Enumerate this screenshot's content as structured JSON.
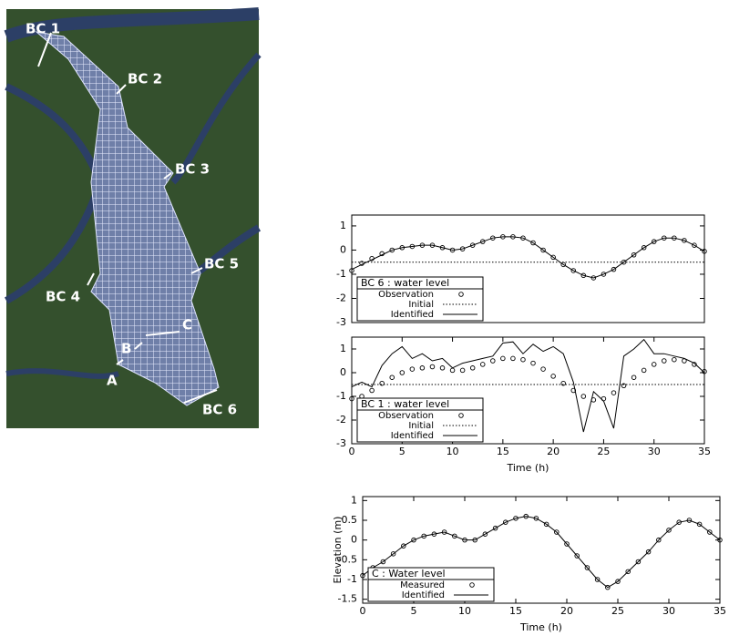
{
  "map": {
    "labels": [
      "BC 1",
      "BC 2",
      "BC 3",
      "BC 4",
      "BC 5",
      "C",
      "B",
      "A",
      "BC 6"
    ]
  },
  "chart_data": [
    {
      "type": "line",
      "title": "BC 6 : water level",
      "legend": "lower left",
      "x": [
        0,
        1,
        2,
        3,
        4,
        5,
        6,
        7,
        8,
        9,
        10,
        11,
        12,
        13,
        14,
        15,
        16,
        17,
        18,
        19,
        20,
        21,
        22,
        23,
        24,
        25,
        26,
        27,
        28,
        29,
        30,
        31,
        32,
        33,
        34,
        35
      ],
      "xlim": [
        0,
        35
      ],
      "ylim": [
        -3,
        1.45
      ],
      "yticks": [
        -3,
        -2,
        -1,
        0,
        1
      ],
      "series": [
        {
          "name": "Observation",
          "color": "#000000",
          "marker": "circle",
          "values": [
            -0.85,
            -0.55,
            -0.35,
            -0.15,
            0.0,
            0.1,
            0.15,
            0.2,
            0.2,
            0.1,
            0.0,
            0.05,
            0.2,
            0.35,
            0.5,
            0.55,
            0.55,
            0.5,
            0.3,
            0.0,
            -0.3,
            -0.6,
            -0.85,
            -1.05,
            -1.15,
            -1.0,
            -0.8,
            -0.5,
            -0.2,
            0.1,
            0.35,
            0.5,
            0.5,
            0.4,
            0.2,
            -0.05
          ]
        },
        {
          "name": "Initial",
          "color": "#000000",
          "dash": "dotted",
          "values": [
            -0.5,
            -0.5,
            -0.5,
            -0.5,
            -0.5,
            -0.5,
            -0.5,
            -0.5,
            -0.5,
            -0.5,
            -0.5,
            -0.5,
            -0.5,
            -0.5,
            -0.5,
            -0.5,
            -0.5,
            -0.5,
            -0.5,
            -0.5,
            -0.5,
            -0.5,
            -0.5,
            -0.5,
            -0.5,
            -0.5,
            -0.5,
            -0.5,
            -0.5,
            -0.5,
            -0.5,
            -0.5,
            -0.5,
            -0.5,
            -0.5,
            -0.5
          ]
        },
        {
          "name": "Identified",
          "color": "#000000",
          "dash": "solid",
          "values": [
            -0.8,
            -0.6,
            -0.4,
            -0.2,
            0.0,
            0.1,
            0.15,
            0.2,
            0.2,
            0.1,
            0.0,
            0.05,
            0.2,
            0.35,
            0.5,
            0.55,
            0.55,
            0.5,
            0.3,
            0.0,
            -0.3,
            -0.6,
            -0.85,
            -1.05,
            -1.15,
            -1.0,
            -0.8,
            -0.5,
            -0.2,
            0.1,
            0.35,
            0.5,
            0.5,
            0.4,
            0.2,
            -0.05
          ]
        }
      ]
    },
    {
      "type": "line",
      "title": "BC 1 : water level",
      "legend": "lower left",
      "xlabel": "Time (h)",
      "x": [
        0,
        1,
        2,
        3,
        4,
        5,
        6,
        7,
        8,
        9,
        10,
        11,
        12,
        13,
        14,
        15,
        16,
        17,
        18,
        19,
        20,
        21,
        22,
        23,
        24,
        25,
        26,
        27,
        28,
        29,
        30,
        31,
        32,
        33,
        34,
        35
      ],
      "xlim": [
        0,
        35
      ],
      "xticks": [
        0,
        5,
        10,
        15,
        20,
        25,
        30,
        35
      ],
      "ylim": [
        -3,
        1.5
      ],
      "yticks": [
        -3,
        -2,
        -1,
        0,
        1
      ],
      "series": [
        {
          "name": "Observation",
          "color": "#000000",
          "marker": "circle",
          "values": [
            -1.1,
            -1.0,
            -0.75,
            -0.45,
            -0.2,
            0.0,
            0.15,
            0.2,
            0.25,
            0.2,
            0.1,
            0.1,
            0.2,
            0.35,
            0.5,
            0.6,
            0.6,
            0.55,
            0.4,
            0.15,
            -0.15,
            -0.45,
            -0.75,
            -1.0,
            -1.15,
            -1.1,
            -0.85,
            -0.55,
            -0.2,
            0.1,
            0.35,
            0.5,
            0.55,
            0.5,
            0.35,
            0.05
          ]
        },
        {
          "name": "Initial",
          "color": "#000000",
          "dash": "dotted",
          "values": [
            -0.5,
            -0.5,
            -0.5,
            -0.5,
            -0.5,
            -0.5,
            -0.5,
            -0.5,
            -0.5,
            -0.5,
            -0.5,
            -0.5,
            -0.5,
            -0.5,
            -0.5,
            -0.5,
            -0.5,
            -0.5,
            -0.5,
            -0.5,
            -0.5,
            -0.5,
            -0.5,
            -0.5,
            -0.5,
            -0.5,
            -0.5,
            -0.5,
            -0.5,
            -0.5,
            -0.5,
            -0.5,
            -0.5,
            -0.5,
            -0.5,
            -0.5
          ]
        },
        {
          "name": "Identified",
          "color": "#000000",
          "dash": "solid",
          "values": [
            -0.6,
            -0.4,
            -0.6,
            0.3,
            0.8,
            1.1,
            0.6,
            0.8,
            0.5,
            0.6,
            0.2,
            0.4,
            0.5,
            0.6,
            0.7,
            1.25,
            1.3,
            0.8,
            1.2,
            0.9,
            1.1,
            0.8,
            -0.4,
            -2.5,
            -0.8,
            -1.2,
            -2.35,
            0.7,
            1.0,
            1.4,
            0.8,
            0.8,
            0.7,
            0.6,
            0.4,
            0.0
          ]
        }
      ]
    },
    {
      "type": "line",
      "title": "C : Water level",
      "legend": "lower left",
      "xlabel": "Time (h)",
      "ylabel": "Elevation (m)",
      "x": [
        0,
        1,
        2,
        3,
        4,
        5,
        6,
        7,
        8,
        9,
        10,
        11,
        12,
        13,
        14,
        15,
        16,
        17,
        18,
        19,
        20,
        21,
        22,
        23,
        24,
        25,
        26,
        27,
        28,
        29,
        30,
        31,
        32,
        33,
        34,
        35
      ],
      "xlim": [
        0,
        35
      ],
      "xticks": [
        0,
        5,
        10,
        15,
        20,
        25,
        30,
        35
      ],
      "ylim": [
        -1.6,
        1.1
      ],
      "yticks": [
        -1.5,
        -1,
        -0.5,
        0,
        0.5,
        1
      ],
      "series": [
        {
          "name": "Measured",
          "color": "#000000",
          "marker": "circle",
          "values": [
            -0.9,
            -0.7,
            -0.55,
            -0.35,
            -0.15,
            0.0,
            0.1,
            0.15,
            0.2,
            0.1,
            0.0,
            0.0,
            0.15,
            0.3,
            0.45,
            0.55,
            0.6,
            0.55,
            0.4,
            0.2,
            -0.1,
            -0.4,
            -0.7,
            -1.0,
            -1.2,
            -1.05,
            -0.8,
            -0.55,
            -0.3,
            0.0,
            0.25,
            0.45,
            0.5,
            0.4,
            0.2,
            0.0
          ]
        },
        {
          "name": "Identified",
          "color": "#000000",
          "dash": "solid",
          "values": [
            -0.9,
            -0.7,
            -0.55,
            -0.35,
            -0.15,
            0.0,
            0.1,
            0.15,
            0.2,
            0.1,
            0.0,
            0.0,
            0.15,
            0.3,
            0.45,
            0.55,
            0.6,
            0.55,
            0.4,
            0.2,
            -0.1,
            -0.4,
            -0.7,
            -1.0,
            -1.2,
            -1.05,
            -0.8,
            -0.55,
            -0.3,
            0.0,
            0.25,
            0.45,
            0.5,
            0.4,
            0.2,
            0.0
          ]
        }
      ]
    }
  ]
}
